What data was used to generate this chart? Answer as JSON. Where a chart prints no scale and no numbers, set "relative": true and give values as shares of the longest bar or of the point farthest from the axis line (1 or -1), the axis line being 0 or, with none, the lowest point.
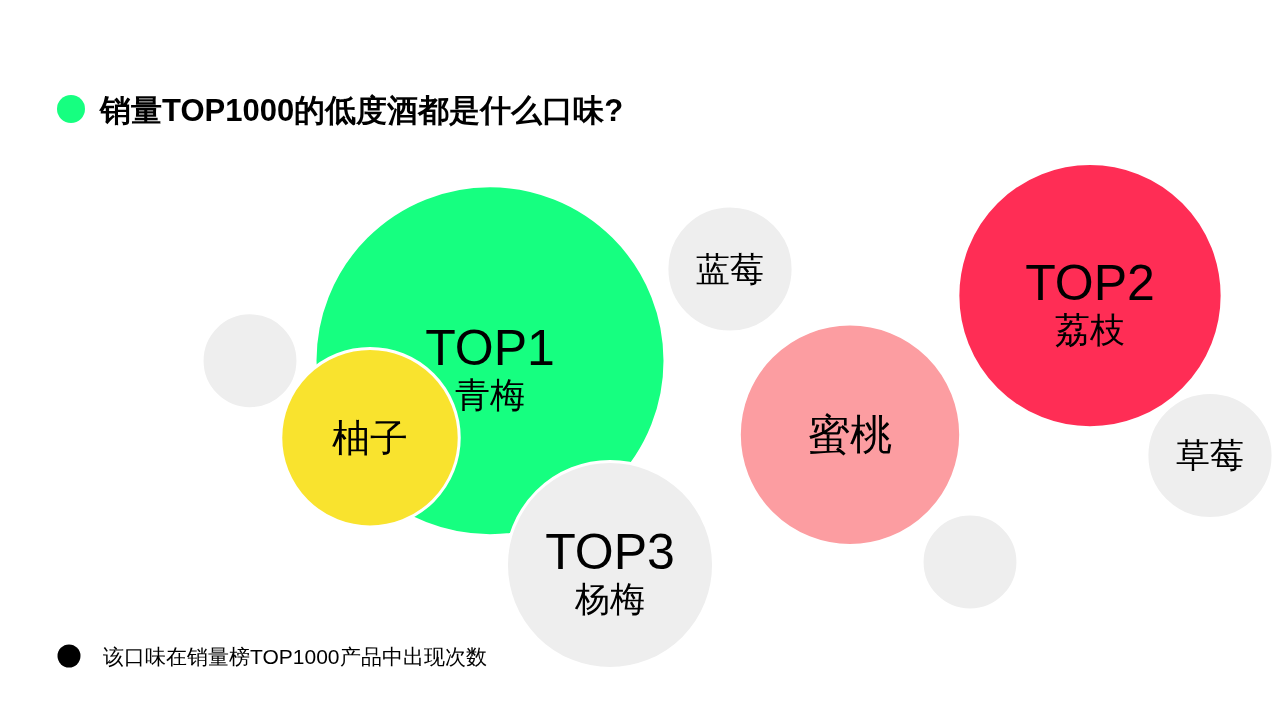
{
  "chart_data": {
    "type": "bubble",
    "title": "销量TOP1000的低度酒都是什么口味?",
    "relative": true,
    "categories": [
      null,
      "柚子",
      "青梅",
      "杨梅",
      "蓝莓",
      "蜜桃",
      null,
      "荔枝",
      "草莓"
    ],
    "values": [
      0.69,
      0.43,
      0.69,
      0,
      1,
      0.44,
      0.01,
      0.91,
      0.37
    ],
    "sizes": [
      0.075,
      0.26,
      1,
      0.35,
      0.13,
      0.4,
      0.075,
      0.57,
      0.13
    ],
    "colors": [
      "#eeeeee",
      "#f9e32e",
      "#16ff80",
      "#eeeeee",
      "#eeeeee",
      "#fc9da1",
      "#eeeeee",
      "#ff2d55",
      "#eeeeee"
    ],
    "annotations": [
      {
        "text": "TOP1",
        "x": "青梅",
        "y": 0.69
      },
      {
        "text": "TOP2",
        "x": "荔枝",
        "y": 0.91
      },
      {
        "text": "TOP3",
        "x": "杨梅",
        "y": 0
      },
      "该口味在销量榜TOP1000产品中出现次数"
    ]
  }
}
